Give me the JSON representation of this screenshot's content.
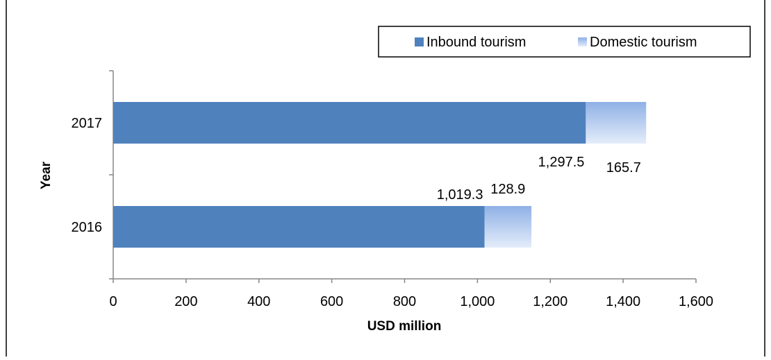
{
  "chart_data": {
    "type": "bar",
    "orientation": "horizontal",
    "stacked": true,
    "title": "",
    "categories": [
      "2016",
      "2017"
    ],
    "series": [
      {
        "name": "Inbound tourism",
        "values": [
          1019.3,
          1297.5
        ],
        "labels": [
          "1,019.3",
          "1,297.5"
        ],
        "color": "#4f81bd"
      },
      {
        "name": "Domestic tourism",
        "values": [
          128.9,
          165.7
        ],
        "labels": [
          "128.9",
          "165.7"
        ],
        "color": "#a6c1ea"
      }
    ],
    "xlabel": "USD million",
    "ylabel": "Year",
    "xlim": [
      0,
      1600
    ],
    "xticks": [
      0,
      200,
      400,
      600,
      800,
      1000,
      1200,
      1400,
      1600
    ],
    "xtick_labels": [
      "0",
      "200",
      "400",
      "600",
      "800",
      "1,000",
      "1,200",
      "1,400",
      "1,600"
    ],
    "grid": false,
    "legend_position": "top-right"
  }
}
